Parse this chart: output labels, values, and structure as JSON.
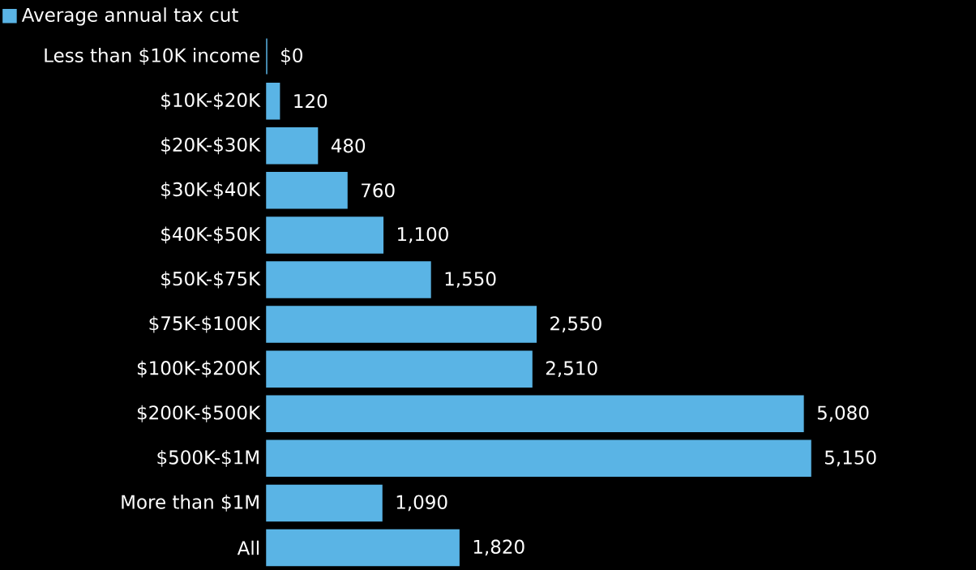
{
  "chart_data": {
    "type": "bar",
    "orientation": "horizontal",
    "categories": [
      "Less than $10K income",
      "$10K-$20K",
      "$20K-$30K",
      "$30K-$40K",
      "$40K-$50K",
      "$50K-$75K",
      "$75K-$100K",
      "$100K-$200K",
      "$200K-$500K",
      "$500K-$1M",
      "More than $1M",
      "All"
    ],
    "series": [
      {
        "name": "Average annual tax cut",
        "color": "#5ab4e5",
        "values": [
          0,
          120,
          480,
          760,
          1100,
          1550,
          2550,
          2510,
          5080,
          5150,
          1090,
          1820
        ],
        "value_labels": [
          "$0",
          "120",
          "480",
          "760",
          "1,100",
          "1,550",
          "2,550",
          "2,510",
          "5,080",
          "5,150",
          "1,090",
          "1,820"
        ]
      }
    ],
    "legend": "top left"
  }
}
